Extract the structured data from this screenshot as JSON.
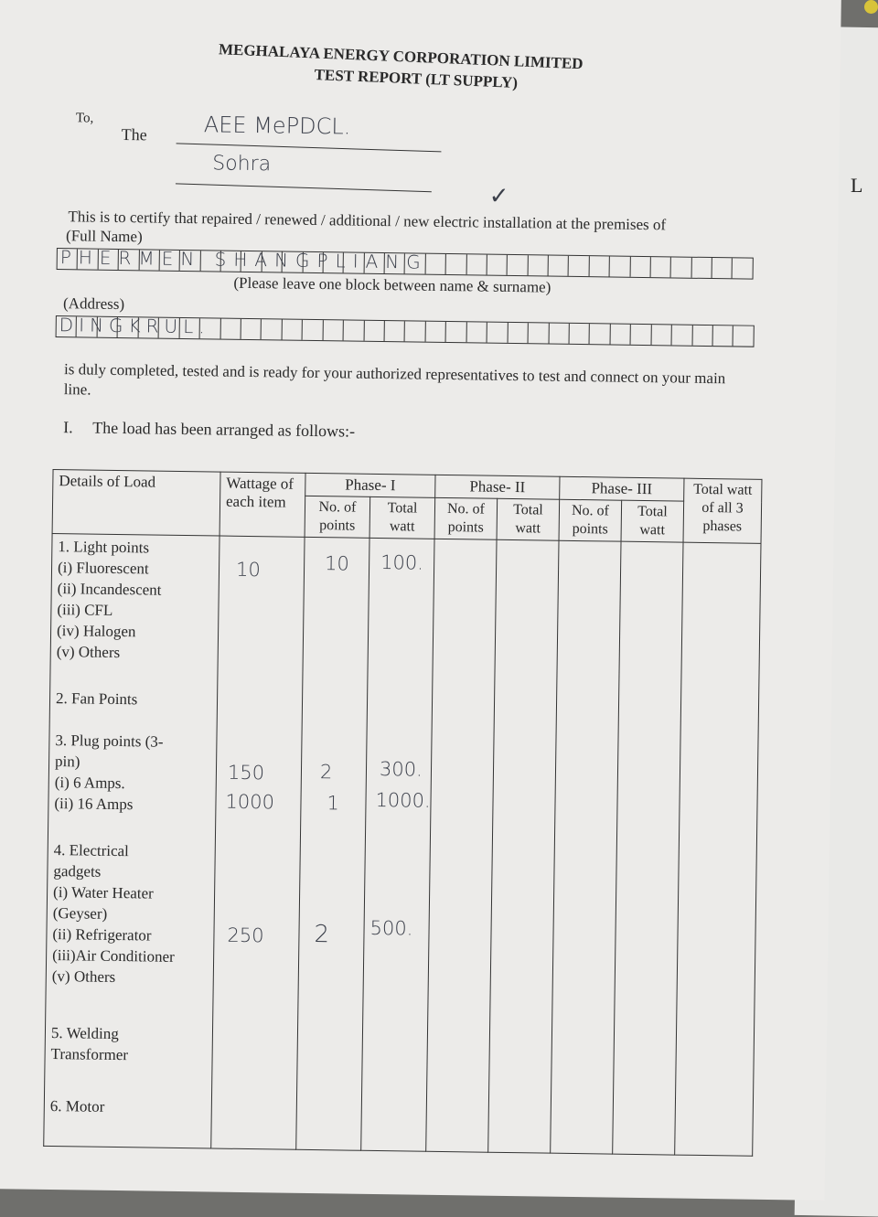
{
  "header": {
    "org": "MEGHALAYA ENERGY CORPORATION LIMITED",
    "title": "TEST REPORT (LT SUPPLY)"
  },
  "to": {
    "label": "To,",
    "the": "The",
    "line1": "AEE MePDCL.",
    "line2": "Sohra"
  },
  "certify": {
    "text": "This is to certify that repaired / renewed / additional / new electric installation at the premises of",
    "full_name_label": "(Full Name)",
    "full_name_value": "PHERMEN SHANGPLIANG",
    "note": "(Please leave one block between name & surname)",
    "address_label": "(Address)",
    "address_value": "DINGKRUL.",
    "tick": "✓"
  },
  "completion_text": "is duly completed, tested and is ready for your authorized representatives to test and connect on your main line.",
  "section": {
    "number": "I.",
    "text": "The load has been arranged as follows:-"
  },
  "table": {
    "headers": {
      "details": "Details of Load",
      "wattage": "Wattage of each item",
      "phase1": "Phase- I",
      "phase2": "Phase- II",
      "phase3": "Phase- III",
      "no_of_points": "No. of points",
      "total_watt": "Total watt",
      "grand_total": "Total watt of all 3 phases"
    },
    "groups": [
      {
        "lines": [
          "1. Light points",
          "(i)  Fluorescent",
          "(ii)  Incandescent",
          "(iii) CFL",
          "(iv) Halogen",
          "(v)  Others"
        ],
        "wattage": "10",
        "points": "10",
        "total": "100."
      },
      {
        "lines": [
          "2. Fan Points"
        ]
      },
      {
        "lines": [
          "3. Plug points (3-",
          "pin)",
          "(i)  6  Amps.",
          "(ii) 16 Amps"
        ],
        "entries": [
          {
            "wattage": "150",
            "points": "2",
            "total": "300."
          },
          {
            "wattage": "1000",
            "points": "1",
            "total": "1000."
          }
        ]
      },
      {
        "lines": [
          "4. Electrical",
          "gadgets",
          "(i) Water Heater",
          "(Geyser)",
          "(ii) Refrigerator",
          "(iii)Air Conditioner",
          "(v) Others"
        ],
        "wattage": "250",
        "points": "2",
        "total": "500."
      },
      {
        "lines": [
          "5. Welding",
          "Transformer"
        ]
      },
      {
        "lines": [
          "6. Motor"
        ]
      }
    ]
  },
  "margin_mark": "L"
}
